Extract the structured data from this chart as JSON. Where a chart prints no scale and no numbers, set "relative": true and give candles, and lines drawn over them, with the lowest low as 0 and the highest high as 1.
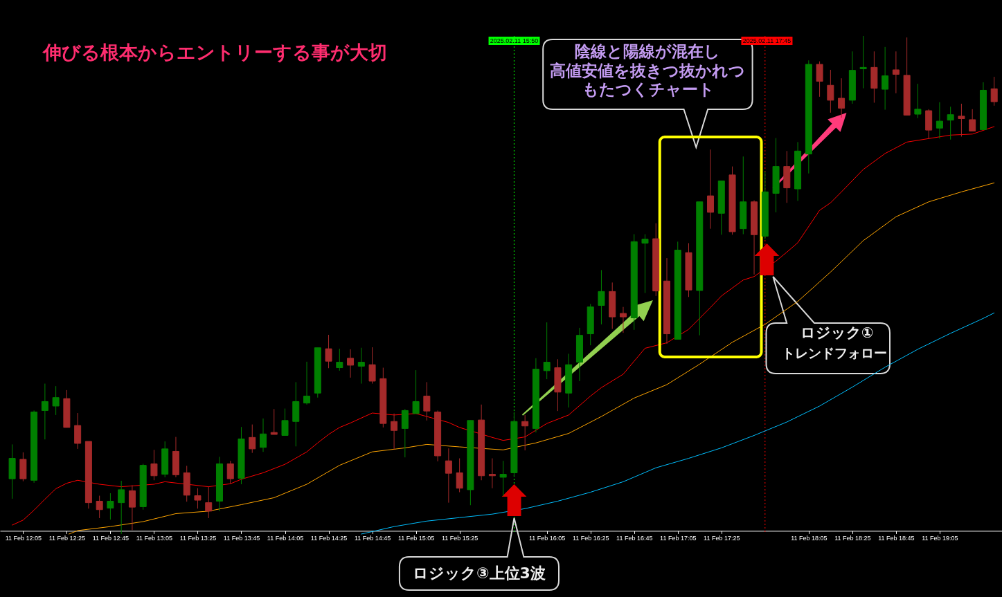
{
  "chart_data": {
    "type": "candlestick",
    "title": "伸びる根本からエントリーする事が大切",
    "relative": true,
    "x": [
      "2025-02-11T12:00",
      "2025-02-11T12:05",
      "2025-02-11T12:10",
      "2025-02-11T12:15",
      "2025-02-11T12:20",
      "2025-02-11T12:25",
      "2025-02-11T12:30",
      "2025-02-11T12:35",
      "2025-02-11T12:40",
      "2025-02-11T12:45",
      "2025-02-11T12:50",
      "2025-02-11T12:55",
      "2025-02-11T13:00",
      "2025-02-11T13:05",
      "2025-02-11T13:10",
      "2025-02-11T13:15",
      "2025-02-11T13:20",
      "2025-02-11T13:25",
      "2025-02-11T13:30",
      "2025-02-11T13:35",
      "2025-02-11T13:40",
      "2025-02-11T13:45",
      "2025-02-11T13:50",
      "2025-02-11T13:55",
      "2025-02-11T14:00",
      "2025-02-11T14:05",
      "2025-02-11T14:10",
      "2025-02-11T14:15",
      "2025-02-11T14:20",
      "2025-02-11T14:25",
      "2025-02-11T14:30",
      "2025-02-11T14:35",
      "2025-02-11T14:40",
      "2025-02-11T14:45",
      "2025-02-11T14:50",
      "2025-02-11T14:55",
      "2025-02-11T15:00",
      "2025-02-11T15:05",
      "2025-02-11T15:10",
      "2025-02-11T15:15",
      "2025-02-11T15:20",
      "2025-02-11T15:25",
      "2025-02-11T15:30",
      "2025-02-11T15:35",
      "2025-02-11T15:40",
      "2025-02-11T15:45",
      "2025-02-11T15:50",
      "2025-02-11T15:55",
      "2025-02-11T16:00",
      "2025-02-11T16:05",
      "2025-02-11T16:10",
      "2025-02-11T16:15",
      "2025-02-11T16:20",
      "2025-02-11T16:25",
      "2025-02-11T16:30",
      "2025-02-11T16:35",
      "2025-02-11T16:40",
      "2025-02-11T16:45",
      "2025-02-11T16:50",
      "2025-02-11T16:55",
      "2025-02-11T17:00",
      "2025-02-11T17:05",
      "2025-02-11T17:10",
      "2025-02-11T17:15",
      "2025-02-11T17:20",
      "2025-02-11T17:25",
      "2025-02-11T17:30",
      "2025-02-11T17:35",
      "2025-02-11T17:40",
      "2025-02-11T17:45",
      "2025-02-11T17:50",
      "2025-02-11T17:55",
      "2025-02-11T18:00",
      "2025-02-11T18:05",
      "2025-02-11T18:10",
      "2025-02-11T18:15",
      "2025-02-11T18:20",
      "2025-02-11T18:25",
      "2025-02-11T18:30",
      "2025-02-11T18:35",
      "2025-02-11T18:40",
      "2025-02-11T18:45",
      "2025-02-11T18:50",
      "2025-02-11T18:55",
      "2025-02-11T19:00",
      "2025-02-11T19:05",
      "2025-02-11T19:10",
      "2025-02-11T19:15",
      "2025-02-11T19:20",
      "2025-02-11T19:25",
      "2025-02-11T19:30"
    ],
    "ohlc": [
      [
        0.111,
        0.18,
        0.071,
        0.152
      ],
      [
        0.15,
        0.164,
        0.106,
        0.111
      ],
      [
        0.108,
        0.248,
        0.103,
        0.245
      ],
      [
        0.248,
        0.302,
        0.19,
        0.266
      ],
      [
        0.257,
        0.297,
        0.239,
        0.274
      ],
      [
        0.272,
        0.289,
        0.214,
        0.214
      ],
      [
        0.218,
        0.243,
        0.171,
        0.182
      ],
      [
        0.186,
        0.186,
        0.051,
        0.063
      ],
      [
        0.066,
        0.077,
        0.032,
        0.049
      ],
      [
        0.052,
        0.082,
        0.029,
        0.066
      ],
      [
        0.063,
        0.107,
        0,
        0.089
      ],
      [
        0.087,
        0.098,
        0.008,
        0.054
      ],
      [
        0.055,
        0.141,
        0.049,
        0.138
      ],
      [
        0.141,
        0.169,
        0.108,
        0.117
      ],
      [
        0.12,
        0.186,
        0.114,
        0.171
      ],
      [
        0.166,
        0.195,
        0.114,
        0.119
      ],
      [
        0.123,
        0.137,
        0.065,
        0.078
      ],
      [
        0.077,
        0.092,
        0.051,
        0.068
      ],
      [
        0.063,
        0.095,
        0.032,
        0.046
      ],
      [
        0.066,
        0.155,
        0.046,
        0.141
      ],
      [
        0.141,
        0.147,
        0.101,
        0.111
      ],
      [
        0.112,
        0.215,
        0.1,
        0.191
      ],
      [
        0.194,
        0.22,
        0.163,
        0.171
      ],
      [
        0.174,
        0.232,
        0.165,
        0.201
      ],
      [
        0.204,
        0.251,
        0.2,
        0.2
      ],
      [
        0.198,
        0.252,
        0.198,
        0.228
      ],
      [
        0.226,
        0.305,
        0.176,
        0.266
      ],
      [
        0.263,
        0.346,
        0.26,
        0.277
      ],
      [
        0.283,
        0.374,
        0.274,
        0.374
      ],
      [
        0.372,
        0.4,
        0.333,
        0.347
      ],
      [
        0.334,
        0.372,
        0.328,
        0.345
      ],
      [
        0.353,
        0.371,
        0.314,
        0.339
      ],
      [
        0.337,
        0.374,
        0.302,
        0.345
      ],
      [
        0.34,
        0.375,
        0.302,
        0.307
      ],
      [
        0.312,
        0.334,
        0.214,
        0.222
      ],
      [
        0.226,
        0.242,
        0.17,
        0.208
      ],
      [
        0.212,
        0.251,
        0.154,
        0.248
      ],
      [
        0.242,
        0.329,
        0.242,
        0.266
      ],
      [
        0.277,
        0.305,
        0.228,
        0.247
      ],
      [
        0.245,
        0.248,
        0.146,
        0.157
      ],
      [
        0.147,
        0.172,
        0.063,
        0.122
      ],
      [
        0.123,
        0.152,
        0.084,
        0.092
      ],
      [
        0.089,
        0.228,
        0.058,
        0.228
      ],
      [
        0.229,
        0.26,
        0.108,
        0.117
      ],
      [
        0.12,
        0.152,
        0.092,
        0.117
      ],
      [
        0.114,
        0.147,
        0.076,
        0.12
      ],
      [
        0.123,
        0.245,
        0.116,
        0.226
      ],
      [
        0.226,
        0.239,
        0.168,
        0.217
      ],
      [
        0.212,
        0.353,
        0.204,
        0.331
      ],
      [
        0.328,
        0.425,
        0.311,
        0.345
      ],
      [
        0.334,
        0.351,
        0.247,
        0.285
      ],
      [
        0.283,
        0.362,
        0.254,
        0.34
      ],
      [
        0.345,
        0.414,
        0.307,
        0.399
      ],
      [
        0.402,
        0.462,
        0.379,
        0.456
      ],
      [
        0.459,
        0.53,
        0.421,
        0.487
      ],
      [
        0.487,
        0.505,
        0.412,
        0.436
      ],
      [
        0.443,
        0.456,
        0.404,
        0.436
      ],
      [
        0.434,
        0.602,
        0.41,
        0.587
      ],
      [
        0.584,
        0.602,
        0.484,
        0.592
      ],
      [
        0.593,
        0.624,
        0.478,
        0.488
      ],
      [
        0.508,
        0.554,
        0.382,
        0.402
      ],
      [
        0.391,
        0.587,
        0.391,
        0.57
      ],
      [
        0.565,
        0.584,
        0.476,
        0.49
      ],
      [
        0.489,
        0.667,
        0.399,
        0.667
      ],
      [
        0.679,
        0.772,
        0.613,
        0.646
      ],
      [
        0.644,
        0.709,
        0.601,
        0.709
      ],
      [
        0.721,
        0.738,
        0.601,
        0.607
      ],
      [
        0.613,
        0.758,
        0.602,
        0.667
      ],
      [
        0.667,
        0.67,
        0.521,
        0.601
      ],
      [
        0.598,
        0.728,
        0.592,
        0.687
      ],
      [
        0.684,
        0.795,
        0.646,
        0.738
      ],
      [
        0.738,
        0.769,
        0.665,
        0.695
      ],
      [
        0.693,
        0.787,
        0.669,
        0.769
      ],
      [
        0.763,
        0.951,
        0.724,
        0.943
      ],
      [
        0.943,
        0.949,
        0.878,
        0.909
      ],
      [
        0.901,
        0.932,
        0.846,
        0.871
      ],
      [
        0.875,
        0.915,
        0.836,
        0.855
      ],
      [
        0.871,
        0.969,
        0.864,
        0.931
      ],
      [
        0.934,
        1,
        0.895,
        0.937
      ],
      [
        0.937,
        0.969,
        0.866,
        0.895
      ],
      [
        0.893,
        0.978,
        0.852,
        0.92
      ],
      [
        0.932,
        0.969,
        0.885,
        0.923
      ],
      [
        0.921,
        0.997,
        0.841,
        0.841
      ],
      [
        0.843,
        0.904,
        0.835,
        0.853
      ],
      [
        0.85,
        0.853,
        0.794,
        0.811
      ],
      [
        0.815,
        0.867,
        0.794,
        0.829
      ],
      [
        0.831,
        0.858,
        0.792,
        0.842
      ],
      [
        0.839,
        0.864,
        0.798,
        0.834
      ],
      [
        0.832,
        0.853,
        0.809,
        0.809
      ],
      [
        0.812,
        0.907,
        0.812,
        0.891
      ],
      [
        0.894,
        0.918,
        0.86,
        0.868
      ]
    ],
    "colors": [
      "#008000",
      "#a52a2a",
      "#008000",
      "#008000",
      "#008000",
      "#a52a2a",
      "#a52a2a",
      "#a52a2a",
      "#a52a2a",
      "#008000",
      "#008000",
      "#a52a2a",
      "#008000",
      "#a52a2a",
      "#008000",
      "#a52a2a",
      "#a52a2a",
      "#a52a2a",
      "#a52a2a",
      "#008000",
      "#a52a2a",
      "#008000",
      "#a52a2a",
      "#008000",
      "#a52a2a",
      "#008000",
      "#008000",
      "#008000",
      "#008000",
      "#a52a2a",
      "#008000",
      "#a52a2a",
      "#008000",
      "#a52a2a",
      "#a52a2a",
      "#a52a2a",
      "#008000",
      "#008000",
      "#a52a2a",
      "#a52a2a",
      "#a52a2a",
      "#a52a2a",
      "#008000",
      "#a52a2a",
      "#a52a2a",
      "#008000",
      "#008000",
      "#a52a2a",
      "#008000",
      "#008000",
      "#a52a2a",
      "#008000",
      "#008000",
      "#008000",
      "#008000",
      "#a52a2a",
      "#a52a2a",
      "#008000",
      "#008000",
      "#a52a2a",
      "#a52a2a",
      "#008000",
      "#a52a2a",
      "#008000",
      "#a52a2a",
      "#008000",
      "#a52a2a",
      "#008000",
      "#a52a2a",
      "#008000",
      "#008000",
      "#a52a2a",
      "#008000",
      "#008000",
      "#a52a2a",
      "#a52a2a",
      "#a52a2a",
      "#008000",
      "#008000",
      "#a52a2a",
      "#008000",
      "#a52a2a",
      "#a52a2a",
      "#008000",
      "#a52a2a",
      "#008000",
      "#008000",
      "#a52a2a",
      "#a52a2a",
      "#008000",
      "#a52a2a"
    ],
    "series": [
      {
        "type": "line",
        "color": "#ff0000",
        "x": [
          "2025-02-11T12:00",
          "2025-02-11T12:05",
          "2025-02-11T12:10",
          "2025-02-11T12:15",
          "2025-02-11T12:20",
          "2025-02-11T12:25",
          "2025-02-11T12:30",
          "2025-02-11T12:40",
          "2025-02-11T12:50",
          "2025-02-11T13:05",
          "2025-02-11T13:10",
          "2025-02-11T13:30",
          "2025-02-11T13:40",
          "2025-02-11T13:45",
          "2025-02-11T13:55",
          "2025-02-11T14:05",
          "2025-02-11T14:15",
          "2025-02-11T14:20",
          "2025-02-11T14:25",
          "2025-02-11T14:30",
          "2025-02-11T14:35",
          "2025-02-11T14:45",
          "2025-02-11T14:55",
          "2025-02-11T15:05",
          "2025-02-11T15:20",
          "2025-02-11T15:25",
          "2025-02-11T15:40",
          "2025-02-11T15:45",
          "2025-02-11T15:55",
          "2025-02-11T16:05",
          "2025-02-11T16:15",
          "2025-02-11T16:25",
          "2025-02-11T16:30",
          "2025-02-11T16:40",
          "2025-02-11T16:50",
          "2025-02-11T17:00",
          "2025-02-11T17:10",
          "2025-02-11T17:20",
          "2025-02-11T17:25",
          "2025-02-11T17:35",
          "2025-02-11T17:40",
          "2025-02-11T17:50",
          "2025-02-11T17:55",
          "2025-02-11T18:00",
          "2025-02-11T18:10",
          "2025-02-11T18:15",
          "2025-02-11T18:20",
          "2025-02-11T18:30",
          "2025-02-11T18:40",
          "2025-02-11T18:50",
          "2025-02-11T19:00",
          "2025-02-11T19:10",
          "2025-02-11T19:20",
          "2025-02-11T19:30"
        ],
        "values": [
          0.018,
          0.028,
          0.048,
          0.07,
          0.091,
          0.102,
          0.108,
          0.1,
          0.095,
          0.1,
          0.105,
          0.095,
          0.101,
          0.11,
          0.123,
          0.14,
          0.165,
          0.183,
          0.2,
          0.214,
          0.223,
          0.243,
          0.239,
          0.242,
          0.224,
          0.214,
          0.194,
          0.188,
          0.195,
          0.222,
          0.239,
          0.277,
          0.294,
          0.321,
          0.373,
          0.384,
          0.411,
          0.455,
          0.478,
          0.51,
          0.517,
          0.548,
          0.566,
          0.585,
          0.65,
          0.665,
          0.687,
          0.732,
          0.764,
          0.787,
          0.794,
          0.801,
          0.803,
          0.818
        ]
      },
      {
        "type": "line",
        "color": "#ffa500",
        "x": [
          "2025-02-11T12:26",
          "2025-02-11T12:30",
          "2025-02-11T12:45",
          "2025-02-11T13:00",
          "2025-02-11T13:15",
          "2025-02-11T13:30",
          "2025-02-11T13:45",
          "2025-02-11T14:00",
          "2025-02-11T14:15",
          "2025-02-11T14:30",
          "2025-02-11T14:45",
          "2025-02-11T15:00",
          "2025-02-11T15:10",
          "2025-02-11T15:25",
          "2025-02-11T15:45",
          "2025-02-11T16:00",
          "2025-02-11T16:15",
          "2025-02-11T16:30",
          "2025-02-11T16:45",
          "2025-02-11T17:00",
          "2025-02-11T17:15",
          "2025-02-11T17:30",
          "2025-02-11T17:45",
          "2025-02-11T18:00",
          "2025-02-11T18:15",
          "2025-02-11T18:30",
          "2025-02-11T18:45",
          "2025-02-11T19:00",
          "2025-02-11T19:15",
          "2025-02-11T19:30"
        ],
        "values": [
          0.0,
          0.007,
          0.015,
          0.025,
          0.041,
          0.046,
          0.059,
          0.073,
          0.1,
          0.138,
          0.165,
          0.173,
          0.18,
          0.175,
          0.169,
          0.183,
          0.202,
          0.236,
          0.273,
          0.3,
          0.341,
          0.385,
          0.421,
          0.467,
          0.526,
          0.589,
          0.637,
          0.667,
          0.687,
          0.705
        ]
      },
      {
        "type": "line",
        "color": "#00bfff",
        "x": [
          "2025-02-11T14:40",
          "2025-02-11T14:55",
          "2025-02-11T15:10",
          "2025-02-11T15:25",
          "2025-02-11T15:40",
          "2025-02-11T15:55",
          "2025-02-11T16:10",
          "2025-02-11T16:25",
          "2025-02-11T16:40",
          "2025-02-11T16:55",
          "2025-02-11T17:10",
          "2025-02-11T17:25",
          "2025-02-11T17:40",
          "2025-02-11T17:55",
          "2025-02-11T18:10",
          "2025-02-11T18:25",
          "2025-02-11T18:40",
          "2025-02-11T18:55",
          "2025-02-11T19:10",
          "2025-02-11T19:25",
          "2025-02-11T19:30"
        ],
        "values": [
          0.0,
          0.015,
          0.026,
          0.033,
          0.04,
          0.051,
          0.066,
          0.084,
          0.105,
          0.133,
          0.152,
          0.173,
          0.198,
          0.225,
          0.257,
          0.295,
          0.335,
          0.371,
          0.403,
          0.433,
          0.444
        ]
      }
    ],
    "xlim": [
      "2025-02-11T11:56",
      "2025-02-11T19:32"
    ],
    "xticks": [
      {
        "value": "2025-02-11T12:05",
        "label": "11 Feb 12:05"
      },
      {
        "value": "2025-02-11T12:25",
        "label": "11 Feb 12:25"
      },
      {
        "value": "2025-02-11T12:45",
        "label": "11 Feb 12:45"
      },
      {
        "value": "2025-02-11T13:05",
        "label": "11 Feb 13:05"
      },
      {
        "value": "2025-02-11T13:25",
        "label": "11 Feb 13:25"
      },
      {
        "value": "2025-02-11T13:45",
        "label": "11 Feb 13:45"
      },
      {
        "value": "2025-02-11T14:05",
        "label": "11 Feb 14:05"
      },
      {
        "value": "2025-02-11T14:25",
        "label": "11 Feb 14:25"
      },
      {
        "value": "2025-02-11T14:45",
        "label": "11 Feb 14:45"
      },
      {
        "value": "2025-02-11T15:05",
        "label": "11 Feb 15:05"
      },
      {
        "value": "2025-02-11T15:25",
        "label": "11 Feb 15:25"
      },
      {
        "value": "2025-02-11T16:05",
        "label": "11 Feb 16:05"
      },
      {
        "value": "2025-02-11T16:25",
        "label": "11 Feb 16:25"
      },
      {
        "value": "2025-02-11T16:45",
        "label": "11 Feb 16:45"
      },
      {
        "value": "2025-02-11T17:05",
        "label": "11 Feb 17:05"
      },
      {
        "value": "2025-02-11T17:25",
        "label": "11 Feb 17:25"
      },
      {
        "value": "2025-02-11T18:05",
        "label": "11 Feb 18:05"
      },
      {
        "value": "2025-02-11T18:25",
        "label": "11 Feb 18:25"
      },
      {
        "value": "2025-02-11T18:45",
        "label": "11 Feb 18:45"
      },
      {
        "value": "2025-02-11T19:05",
        "label": "11 Feb 19:05"
      }
    ],
    "ref_lines": [
      {
        "axis": "x",
        "value": "2025-02-11T15:50",
        "label": "2025.02.11 15:50",
        "color": "#00ff00",
        "line_style": "dotted"
      },
      {
        "axis": "x",
        "value": "2025-02-11T17:45",
        "label": "2025.02.11 17:45",
        "color": "#ff0000",
        "line_style": "dotted"
      }
    ],
    "annotations": [
      "陰線と陽線が混在し",
      "高値安値を抜きつ抜かれつ",
      "もたつくチャート",
      "ロジック①",
      "トレンドフォロー",
      "ロジック③上位3波"
    ]
  }
}
